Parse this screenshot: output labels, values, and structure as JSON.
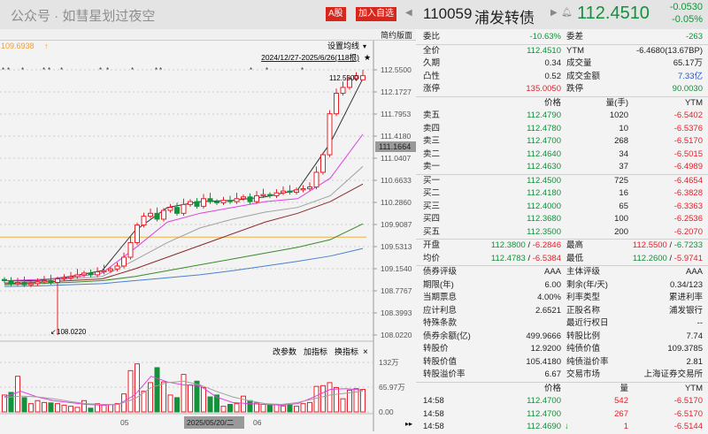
{
  "toolbar": {
    "a_share": "A股",
    "add_watch": "加入自选",
    "layout": "简约版面"
  },
  "header": {
    "code": "110059",
    "name": "浦发转债",
    "price": "112.4510",
    "change": "-0.0530",
    "change_pct": "-0.05%"
  },
  "quote": {
    "weibi_label": "委比",
    "weibi": "-10.63%",
    "weicha_label": "委差",
    "weicha": "-263",
    "rows": [
      {
        "l1": "全价",
        "v1": "112.4510",
        "c1": "g",
        "l2": "YTM",
        "v2": "-6.4680(13.67BP)",
        "c2": ""
      },
      {
        "l1": "久期",
        "v1": "0.34",
        "c1": "",
        "l2": "成交量",
        "v2": "65.17万",
        "c2": ""
      },
      {
        "l1": "凸性",
        "v1": "0.52",
        "c1": "",
        "l2": "成交金额",
        "v2": "7.33亿",
        "c2": "b"
      },
      {
        "l1": "涨停",
        "v1": "135.0050",
        "c1": "r",
        "l2": "跌停",
        "v2": "90.0030",
        "c2": "g"
      }
    ]
  },
  "orderbook": {
    "headers": {
      "price": "价格",
      "qty": "量(手)",
      "ytm": "YTM"
    },
    "asks": [
      {
        "label": "卖五",
        "price": "112.4790",
        "qty": "1020",
        "ytm": "-6.5402"
      },
      {
        "label": "卖四",
        "price": "112.4780",
        "qty": "10",
        "ytm": "-6.5376"
      },
      {
        "label": "卖三",
        "price": "112.4700",
        "qty": "268",
        "ytm": "-6.5170"
      },
      {
        "label": "卖二",
        "price": "112.4640",
        "qty": "34",
        "ytm": "-6.5015"
      },
      {
        "label": "卖一",
        "price": "112.4630",
        "qty": "37",
        "ytm": "-6.4989"
      }
    ],
    "bids": [
      {
        "label": "买一",
        "price": "112.4500",
        "qty": "725",
        "ytm": "-6.4654"
      },
      {
        "label": "买二",
        "price": "112.4180",
        "qty": "16",
        "ytm": "-6.3828"
      },
      {
        "label": "买三",
        "price": "112.4000",
        "qty": "65",
        "ytm": "-6.3363"
      },
      {
        "label": "买四",
        "price": "112.3680",
        "qty": "100",
        "ytm": "-6.2536"
      },
      {
        "label": "买五",
        "price": "112.3500",
        "qty": "200",
        "ytm": "-6.2070"
      }
    ]
  },
  "ohlc": {
    "open_label": "开盘",
    "open": "112.3800",
    "open_ytm": "-6.2846",
    "high_label": "最高",
    "high": "112.5500",
    "high_ytm": "-6.7233",
    "avg_label": "均价",
    "avg": "112.4783",
    "avg_ytm": "-6.5384",
    "low_label": "最低",
    "low": "112.2600",
    "low_ytm": "-5.9741"
  },
  "info": [
    {
      "l1": "债券评级",
      "v1": "AAA",
      "l2": "主体评级",
      "v2": "AAA"
    },
    {
      "l1": "期限(年)",
      "v1": "6.00",
      "l2": "剩余(年/天)",
      "v2": "0.34/123"
    },
    {
      "l1": "当期票息",
      "v1": "4.00%",
      "l2": "利率类型",
      "v2": "累进利率"
    },
    {
      "l1": "应计利息",
      "v1": "2.6521",
      "l2": "正股名称",
      "v2": "浦发银行"
    },
    {
      "l1": "特殊条款",
      "v1": "",
      "l2": "最近行权日",
      "v2": "--"
    },
    {
      "l1": "债券余额(亿)",
      "v1": "499.9666",
      "l2": "转股比例",
      "v2": "7.74"
    },
    {
      "l1": "转股价",
      "v1": "12.9200",
      "l2": "纯债价值",
      "v2": "109.3785"
    },
    {
      "l1": "转股价值",
      "v1": "105.4180",
      "l2": "纯债溢价率",
      "v2": "2.81"
    },
    {
      "l1": "转股溢价率",
      "v1": "6.67",
      "l2": "交易市场",
      "v2": "上海证券交易所"
    }
  ],
  "ticks": {
    "headers": {
      "price": "价格",
      "qty": "量",
      "ytm": "YTM"
    },
    "rows": [
      {
        "time": "14:58",
        "price": "112.4700",
        "qty": "542",
        "ytm": "-6.5170",
        "arrow": ""
      },
      {
        "time": "14:58",
        "price": "112.4700",
        "qty": "267",
        "ytm": "-6.5170",
        "arrow": ""
      },
      {
        "time": "14:58",
        "price": "112.4690",
        "qty": "1",
        "ytm": "-6.5144",
        "arrow": "↓"
      }
    ]
  },
  "watermark": "公众号 · 如彗星划过夜空",
  "chart_labels": {
    "set_ma": "设置均线",
    "range": "2024/12/27-2025/6/26(118根)",
    "ref_line": "109.6938",
    "high_mark": "112.5500",
    "low_mark": "108.0220",
    "cur_price": "111.1664",
    "change_param": "改参数",
    "add_ind": "加指标",
    "swap_ind": "换指标",
    "date_cursor": "2025/05/20/二",
    "month_05": "05",
    "month_06": "06"
  },
  "chart_data": {
    "type": "candlestick",
    "price_ticks": [
      "112.5500",
      "112.1727",
      "111.7953",
      "111.4180",
      "111.0407",
      "110.6633",
      "110.2860",
      "109.9087",
      "109.5313",
      "109.1540",
      "108.7767",
      "108.3993",
      "108.0220"
    ],
    "ylim": [
      108.022,
      112.55
    ],
    "closes": [
      108.95,
      108.9,
      108.92,
      108.88,
      108.9,
      108.93,
      108.95,
      108.92,
      108.98,
      109.0,
      109.02,
      109.05,
      109.08,
      109.05,
      109.1,
      109.12,
      109.15,
      109.2,
      109.35,
      109.6,
      109.9,
      110.05,
      110.1,
      110.0,
      110.15,
      110.2,
      110.1,
      110.25,
      110.3,
      110.22,
      110.35,
      110.3,
      110.28,
      110.32,
      110.3,
      110.35,
      110.38,
      110.3,
      110.4,
      110.42,
      110.4,
      110.45,
      110.48,
      110.46,
      110.5,
      110.52,
      110.55,
      110.8,
      111.1,
      111.8,
      112.15,
      112.25,
      112.4,
      112.45,
      112.45
    ],
    "ref_line": 109.6938,
    "ma_lines": [
      {
        "name": "MA5",
        "color": "#333333",
        "values": [
          108.95,
          108.95,
          109.02,
          109.12,
          109.8,
          110.2,
          110.3,
          110.32,
          110.38,
          110.5,
          111.3,
          112.4
        ]
      },
      {
        "name": "MA10",
        "color": "#e040e0",
        "values": [
          108.95,
          108.97,
          109.0,
          109.08,
          109.5,
          109.95,
          110.1,
          110.2,
          110.3,
          110.35,
          110.7,
          111.45
        ]
      },
      {
        "name": "MA20",
        "color": "#a0a0a0",
        "values": [
          108.92,
          108.94,
          108.98,
          109.02,
          109.3,
          109.6,
          109.85,
          110.0,
          110.12,
          110.2,
          110.4,
          110.9
        ]
      },
      {
        "name": "MA30",
        "color": "#8b2a2a",
        "values": [
          108.9,
          108.92,
          108.95,
          108.98,
          109.15,
          109.35,
          109.55,
          109.75,
          109.95,
          110.1,
          110.3,
          110.6
        ]
      },
      {
        "name": "MA60",
        "color": "#3a8a2a",
        "values": [
          108.88,
          108.9,
          108.92,
          108.95,
          109.02,
          109.12,
          109.22,
          109.32,
          109.42,
          109.52,
          109.65,
          109.92
        ]
      },
      {
        "name": "MA120",
        "color": "#4a80d0",
        "values": [
          108.85,
          108.86,
          108.88,
          108.9,
          108.95,
          109.0,
          109.05,
          109.12,
          109.2,
          109.28,
          109.37,
          109.5
        ]
      }
    ],
    "volume_ticks": [
      "132万",
      "65.97万",
      "0.00"
    ],
    "volume_max": 132,
    "volumes": [
      45,
      52,
      95,
      38,
      22,
      30,
      25,
      24,
      22,
      18,
      15,
      12,
      30,
      10,
      22,
      18,
      20,
      22,
      48,
      110,
      128,
      55,
      78,
      118,
      80,
      45,
      38,
      100,
      72,
      82,
      65,
      40,
      45,
      15,
      20,
      22,
      42,
      30,
      24,
      20,
      18,
      20,
      16,
      18,
      15,
      22,
      25,
      68,
      70,
      78,
      65,
      35,
      58,
      62,
      60
    ],
    "volume_ma": [
      {
        "color": "#e040e0",
        "values": [
          40,
          55,
          40,
          30,
          25,
          20,
          18,
          20,
          45,
          95,
          80,
          72,
          70,
          40,
          25,
          22,
          20,
          18,
          22,
          40,
          60,
          62,
          58
        ]
      },
      {
        "color": "#a0a0a0",
        "values": [
          38,
          42,
          40,
          35,
          28,
          22,
          20,
          20,
          35,
          65,
          78,
          82,
          72,
          55,
          40,
          30,
          22,
          20,
          25,
          35,
          45,
          50,
          55
        ]
      }
    ]
  }
}
